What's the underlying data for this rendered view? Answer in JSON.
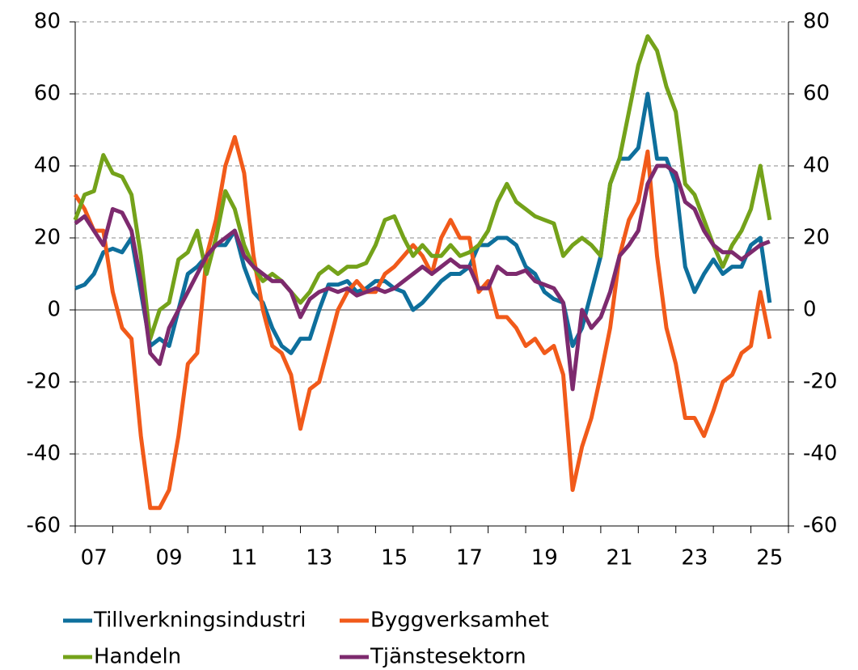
{
  "chart_data": {
    "type": "line",
    "x": [
      2007,
      2007.25,
      2007.5,
      2007.75,
      2008,
      2008.25,
      2008.5,
      2008.75,
      2009,
      2009.25,
      2009.5,
      2009.75,
      2010,
      2010.25,
      2010.5,
      2010.75,
      2011,
      2011.25,
      2011.5,
      2011.75,
      2012,
      2012.25,
      2012.5,
      2012.75,
      2013,
      2013.25,
      2013.5,
      2013.75,
      2014,
      2014.25,
      2014.5,
      2014.75,
      2015,
      2015.25,
      2015.5,
      2015.75,
      2016,
      2016.25,
      2016.5,
      2016.75,
      2017,
      2017.25,
      2017.5,
      2017.75,
      2018,
      2018.25,
      2018.5,
      2018.75,
      2019,
      2019.25,
      2019.5,
      2019.75,
      2020,
      2020.25,
      2020.5,
      2020.75,
      2021,
      2021.25,
      2021.5,
      2021.75,
      2022,
      2022.25,
      2022.5,
      2022.75,
      2023,
      2023.25,
      2023.5,
      2023.75,
      2024,
      2024.25,
      2024.5,
      2024.75,
      2025,
      2025.25,
      2025.5
    ],
    "series": [
      {
        "name": "Tillverkningsindustri",
        "color": "#0e6f9c",
        "values": [
          6,
          7,
          10,
          16,
          17,
          16,
          20,
          5,
          -10,
          -8,
          -10,
          0,
          10,
          12,
          15,
          18,
          18,
          22,
          12,
          5,
          2,
          -5,
          -10,
          -12,
          -8,
          -8,
          0,
          7,
          7,
          8,
          5,
          6,
          8,
          8,
          6,
          5,
          0,
          2,
          5,
          8,
          10,
          10,
          12,
          18,
          18,
          20,
          20,
          18,
          12,
          10,
          5,
          3,
          2,
          -10,
          -5,
          5,
          15,
          35,
          42,
          42,
          45,
          60,
          42,
          42,
          35,
          12,
          5,
          10,
          14,
          10,
          12,
          12,
          18,
          20,
          2
        ]
      },
      {
        "name": "Byggverksamhet",
        "color": "#f15a1a",
        "values": [
          32,
          28,
          22,
          22,
          5,
          -5,
          -8,
          -35,
          -55,
          -55,
          -50,
          -35,
          -15,
          -12,
          15,
          25,
          40,
          48,
          38,
          15,
          0,
          -10,
          -12,
          -18,
          -33,
          -22,
          -20,
          -10,
          0,
          5,
          8,
          5,
          5,
          10,
          12,
          15,
          18,
          15,
          10,
          20,
          25,
          20,
          20,
          5,
          8,
          -2,
          -2,
          -5,
          -10,
          -8,
          -12,
          -10,
          -18,
          -50,
          -38,
          -30,
          -18,
          -5,
          15,
          25,
          30,
          44,
          15,
          -5,
          -15,
          -30,
          -30,
          -35,
          -28,
          -20,
          -18,
          -12,
          -10,
          5,
          -8
        ]
      },
      {
        "name": "Handeln",
        "color": "#74a21a",
        "values": [
          25,
          32,
          33,
          43,
          38,
          37,
          32,
          15,
          -8,
          0,
          2,
          14,
          16,
          22,
          10,
          20,
          33,
          28,
          18,
          12,
          8,
          10,
          8,
          5,
          2,
          5,
          10,
          12,
          10,
          12,
          12,
          13,
          18,
          25,
          26,
          20,
          15,
          18,
          15,
          15,
          18,
          15,
          16,
          18,
          22,
          30,
          35,
          30,
          28,
          26,
          25,
          24,
          15,
          18,
          20,
          18,
          15,
          35,
          42,
          55,
          68,
          76,
          72,
          62,
          55,
          35,
          32,
          25,
          18,
          12,
          18,
          22,
          28,
          40,
          25
        ]
      },
      {
        "name": "Tjänstesektorn",
        "color": "#7d2a6e",
        "values": [
          24,
          26,
          22,
          18,
          28,
          27,
          22,
          8,
          -12,
          -15,
          -5,
          0,
          5,
          10,
          15,
          18,
          20,
          22,
          15,
          12,
          10,
          8,
          8,
          5,
          -2,
          3,
          5,
          6,
          5,
          6,
          4,
          5,
          6,
          5,
          6,
          8,
          10,
          12,
          10,
          12,
          14,
          12,
          12,
          6,
          6,
          12,
          10,
          10,
          11,
          8,
          7,
          6,
          2,
          -22,
          0,
          -5,
          -2,
          5,
          15,
          18,
          22,
          35,
          40,
          40,
          38,
          30,
          28,
          22,
          18,
          16,
          16,
          14,
          16,
          18,
          19
        ]
      }
    ],
    "xlim": [
      2007,
      2026
    ],
    "xtick_marks": [
      2007,
      2008,
      2009,
      2010,
      2011,
      2012,
      2013,
      2014,
      2015,
      2016,
      2017,
      2018,
      2019,
      2020,
      2021,
      2022,
      2023,
      2024,
      2025,
      2026
    ],
    "xticks": [
      {
        "value": 2007.5,
        "label": "07"
      },
      {
        "value": 2009.5,
        "label": "09"
      },
      {
        "value": 2011.5,
        "label": "11"
      },
      {
        "value": 2013.5,
        "label": "13"
      },
      {
        "value": 2015.5,
        "label": "15"
      },
      {
        "value": 2017.5,
        "label": "17"
      },
      {
        "value": 2019.5,
        "label": "19"
      },
      {
        "value": 2021.5,
        "label": "21"
      },
      {
        "value": 2023.5,
        "label": "23"
      },
      {
        "value": 2025.5,
        "label": "25"
      }
    ],
    "ylim": [
      -60,
      80
    ],
    "yticks": [
      -60,
      -40,
      -20,
      0,
      20,
      40,
      60,
      80
    ],
    "y2lim": [
      -60,
      80
    ],
    "y2ticks": [
      -60,
      -40,
      -20,
      0,
      20,
      40,
      60,
      80
    ],
    "grid": true,
    "legend": "bottom"
  }
}
